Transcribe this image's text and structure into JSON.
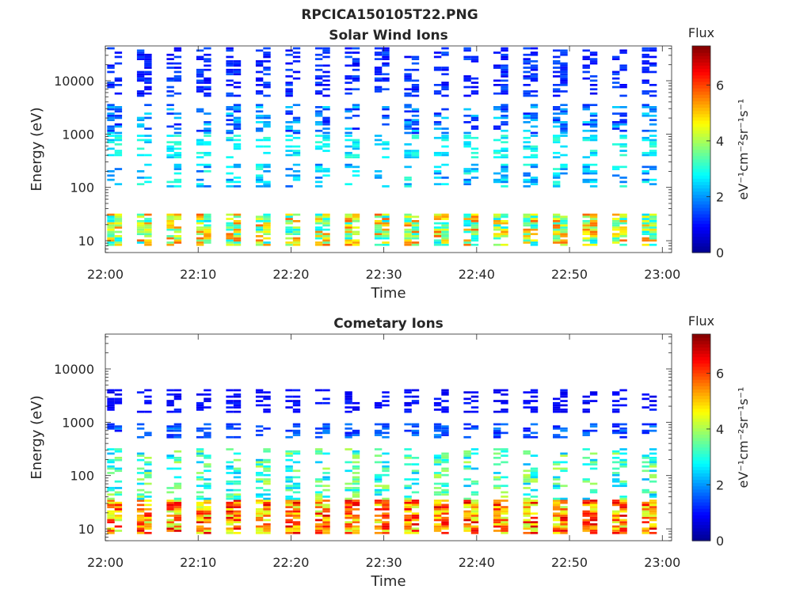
{
  "figure_title": "RPCICA150105T22.PNG",
  "colors": {
    "colormap": [
      "#00008f",
      "#0000ff",
      "#0080ff",
      "#00ffff",
      "#80ff80",
      "#ffff00",
      "#ff8000",
      "#ff0000",
      "#800000"
    ]
  },
  "chart_data": [
    {
      "type": "heatmap",
      "title": "Solar Wind Ions",
      "xlabel": "Time",
      "ylabel": "Energy (eV)",
      "y_scale": "log",
      "xlim": [
        "22:00",
        "23:01"
      ],
      "ylim": [
        6,
        45000
      ],
      "x_ticks": [
        "22:00",
        "22:10",
        "22:20",
        "22:30",
        "22:40",
        "22:50",
        "23:00"
      ],
      "y_ticks": [
        "10",
        "100",
        "1000",
        "10000"
      ],
      "colorbar": {
        "title": "Flux",
        "unit": "eV⁻¹cm⁻²sr⁻¹s⁻¹",
        "range": [
          0,
          7.4
        ],
        "ticks": [
          "0",
          "2",
          "4",
          "6"
        ]
      },
      "scan_period_min": 3.2,
      "features": [
        {
          "energy_ev": [
            8,
            30
          ],
          "flux": [
            2.5,
            5.8
          ]
        },
        {
          "energy_ev": [
            100,
            260
          ],
          "flux": [
            1.6,
            3.2
          ]
        },
        {
          "energy_ev": [
            350,
            900
          ],
          "flux": [
            2.2,
            3.2
          ]
        },
        {
          "energy_ev": [
            1000,
            3500
          ],
          "flux": [
            1.0,
            2.6
          ]
        },
        {
          "energy_ev": [
            5000,
            40000
          ],
          "flux": [
            0.8,
            1.6
          ]
        }
      ]
    },
    {
      "type": "heatmap",
      "title": "Cometary Ions",
      "xlabel": "Time",
      "ylabel": "Energy (eV)",
      "y_scale": "log",
      "xlim": [
        "22:00",
        "23:01"
      ],
      "ylim": [
        6,
        45000
      ],
      "x_ticks": [
        "22:00",
        "22:10",
        "22:20",
        "22:30",
        "22:40",
        "22:50",
        "23:00"
      ],
      "y_ticks": [
        "10",
        "100",
        "1000",
        "10000"
      ],
      "colorbar": {
        "title": "Flux",
        "unit": "eV⁻¹cm⁻²sr⁻¹s⁻¹",
        "range": [
          0,
          7.4
        ],
        "ticks": [
          "0",
          "2",
          "4",
          "6"
        ]
      },
      "scan_period_min": 3.2,
      "features": [
        {
          "energy_ev": [
            8,
            35
          ],
          "flux": [
            4.0,
            6.8
          ]
        },
        {
          "energy_ev": [
            35,
            300
          ],
          "flux": [
            2.2,
            4.2
          ]
        },
        {
          "energy_ev": [
            500,
            900
          ],
          "flux": [
            1.0,
            2.0
          ]
        },
        {
          "energy_ev": [
            1500,
            4000
          ],
          "flux": [
            0.7,
            1.2
          ]
        }
      ]
    }
  ]
}
